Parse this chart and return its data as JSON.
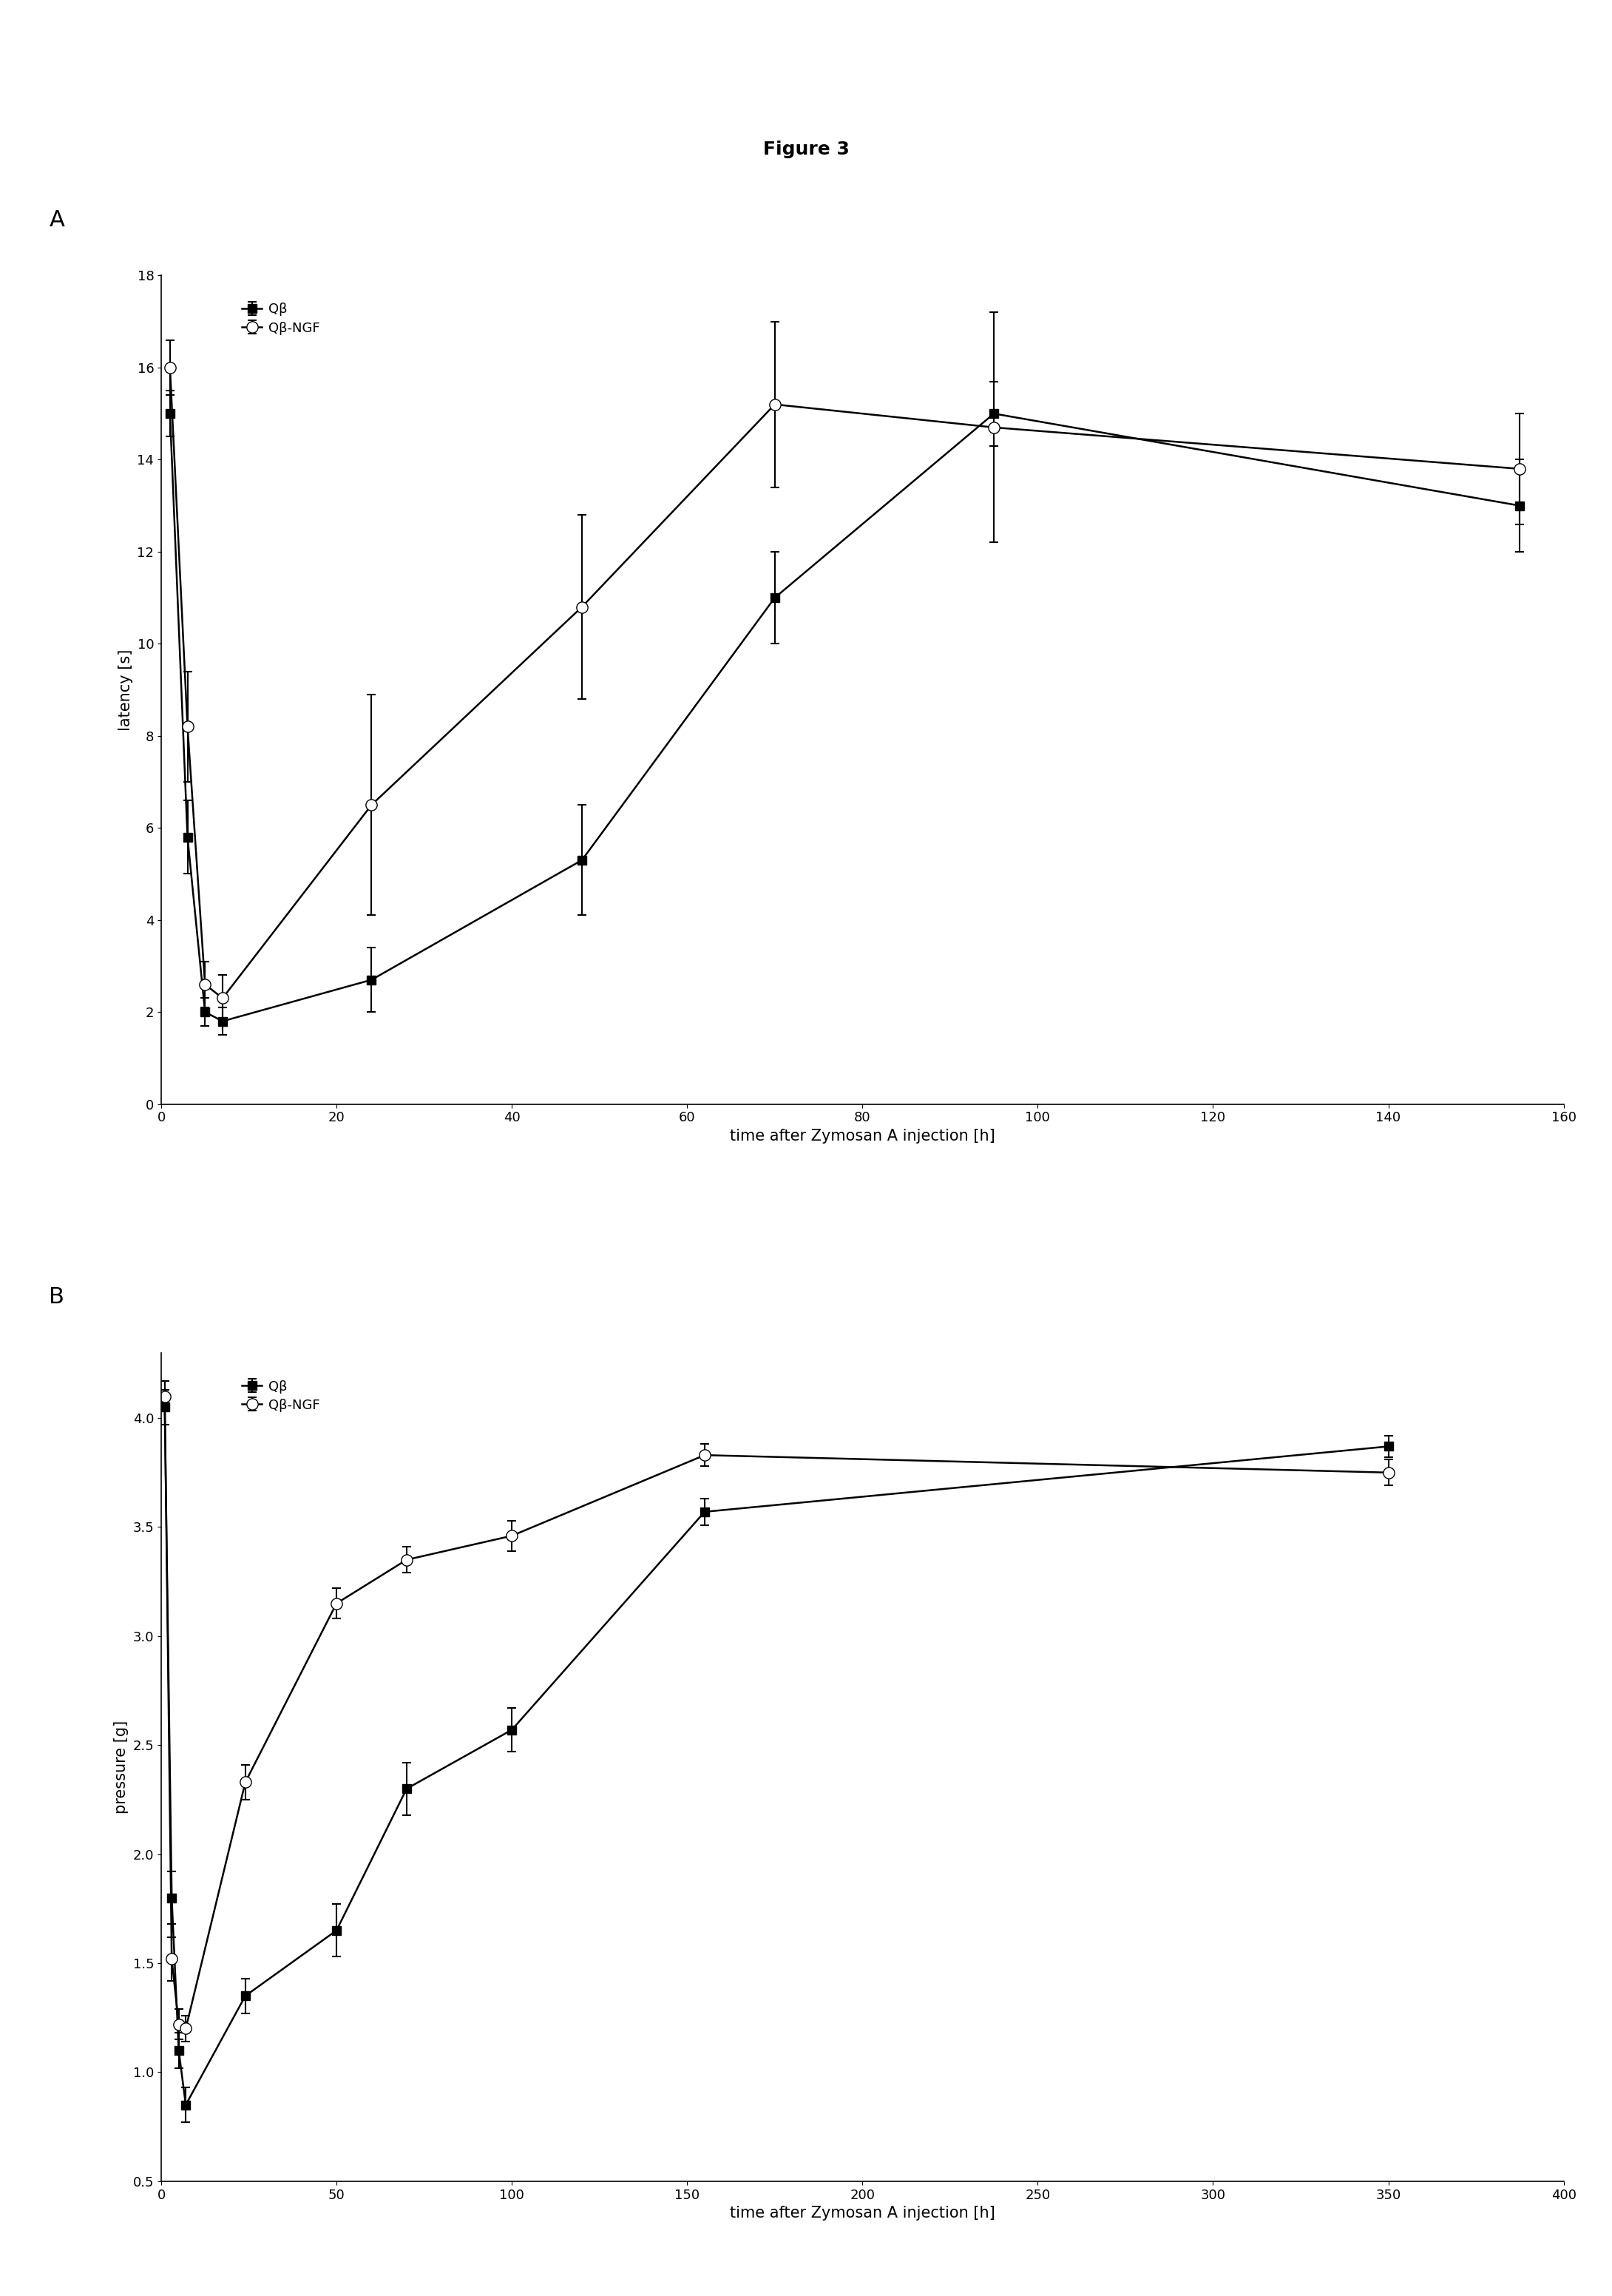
{
  "title": "Figure 3",
  "panel_A": {
    "label": "A",
    "qb_x": [
      1,
      3,
      5,
      7,
      24,
      48,
      70,
      95,
      155
    ],
    "qb_y": [
      15.0,
      5.8,
      2.0,
      1.8,
      2.7,
      5.3,
      11.0,
      15.0,
      13.0
    ],
    "qb_yerr": [
      0.5,
      0.8,
      0.3,
      0.3,
      0.7,
      1.2,
      1.0,
      0.7,
      1.0
    ],
    "ngf_x": [
      1,
      3,
      5,
      7,
      24,
      48,
      70,
      95,
      155
    ],
    "ngf_y": [
      16.0,
      8.2,
      2.6,
      2.3,
      6.5,
      10.8,
      15.2,
      14.7,
      13.8
    ],
    "ngf_yerr": [
      0.6,
      1.2,
      0.5,
      0.5,
      2.4,
      2.0,
      1.8,
      2.5,
      1.2
    ],
    "xlabel": "time after Zymosan A injection [h]",
    "ylabel": "latency [s]",
    "xlim": [
      0,
      160
    ],
    "ylim": [
      0,
      18
    ],
    "xticks": [
      0,
      20,
      40,
      60,
      80,
      100,
      120,
      140,
      160
    ],
    "yticks": [
      0,
      2,
      4,
      6,
      8,
      10,
      12,
      14,
      16,
      18
    ]
  },
  "panel_B": {
    "label": "B",
    "qb_x": [
      1,
      3,
      5,
      7,
      24,
      50,
      70,
      100,
      155,
      350
    ],
    "qb_y": [
      4.05,
      1.8,
      1.1,
      0.85,
      1.35,
      1.65,
      2.3,
      2.57,
      3.57,
      3.87
    ],
    "qb_yerr": [
      0.08,
      0.12,
      0.08,
      0.08,
      0.08,
      0.12,
      0.12,
      0.1,
      0.06,
      0.05
    ],
    "ngf_x": [
      1,
      3,
      5,
      7,
      24,
      50,
      70,
      100,
      155,
      350
    ],
    "ngf_y": [
      4.1,
      1.52,
      1.22,
      1.2,
      2.33,
      3.15,
      3.35,
      3.46,
      3.83,
      3.75
    ],
    "ngf_yerr": [
      0.07,
      0.1,
      0.07,
      0.06,
      0.08,
      0.07,
      0.06,
      0.07,
      0.05,
      0.06
    ],
    "xlabel": "time after Zymosan A injection [h]",
    "ylabel": "pressure [g]",
    "xlim": [
      0,
      400
    ],
    "ylim": [
      0.5,
      4.3
    ],
    "xticks": [
      0,
      50,
      100,
      150,
      200,
      250,
      300,
      350,
      400
    ],
    "yticks": [
      0.5,
      1.0,
      1.5,
      2.0,
      2.5,
      3.0,
      3.5,
      4.0
    ]
  },
  "legend_qb": "Qβ",
  "legend_ngf": "-O- Qβ-NGF",
  "legend_qb_display": "Qβ",
  "legend_ngf_display": "Qβ-NGF",
  "color_qb": "#000000",
  "color_ngf": "#000000",
  "bg_color": "#ffffff",
  "title_fontsize": 18,
  "label_fontsize": 15,
  "tick_fontsize": 13,
  "legend_fontsize": 13,
  "panel_label_fontsize": 22
}
